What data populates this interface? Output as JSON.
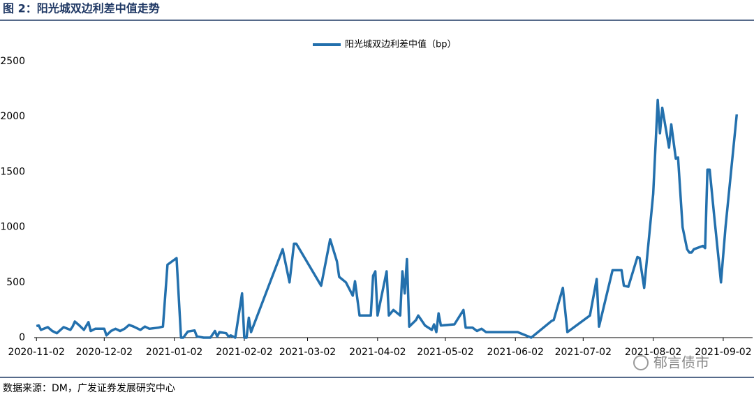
{
  "chart_data": {
    "type": "line",
    "title": "图 2：阳光城双边利差中值走势",
    "source": "数据来源：DM，广发证券发展研究中心",
    "watermark": "郁言债市",
    "series": [
      {
        "name": "阳光城双边利差中值（bp）",
        "color": "#2370ad",
        "x": [
          "2020-11-02",
          "2020-11-03",
          "2020-11-04",
          "2020-11-07",
          "2020-11-09",
          "2020-11-11",
          "2020-11-14",
          "2020-11-17",
          "2020-11-18",
          "2020-11-19",
          "2020-11-21",
          "2020-11-23",
          "2020-11-25",
          "2020-11-26",
          "2020-11-28",
          "2020-12-02",
          "2020-12-03",
          "2020-12-05",
          "2020-12-07",
          "2020-12-09",
          "2020-12-11",
          "2020-12-13",
          "2020-12-15",
          "2020-12-18",
          "2020-12-20",
          "2020-12-22",
          "2020-12-26",
          "2020-12-28",
          "2020-12-30",
          "2021-01-03",
          "2021-01-05",
          "2021-01-06",
          "2021-01-08",
          "2021-01-11",
          "2021-01-12",
          "2021-01-15",
          "2021-01-18",
          "2021-01-20",
          "2021-01-21",
          "2021-01-22",
          "2021-01-25",
          "2021-01-26",
          "2021-01-27",
          "2021-01-29",
          "2021-02-01",
          "2021-02-02",
          "2021-02-03",
          "2021-02-04",
          "2021-02-05",
          "2021-02-19",
          "2021-02-22",
          "2021-02-24",
          "2021-02-25",
          "2021-03-08",
          "2021-03-12",
          "2021-03-15",
          "2021-03-16",
          "2021-03-19",
          "2021-03-22",
          "2021-03-23",
          "2021-03-25",
          "2021-03-26",
          "2021-03-30",
          "2021-03-31",
          "2021-04-01",
          "2021-04-02",
          "2021-04-06",
          "2021-04-07",
          "2021-04-09",
          "2021-04-12",
          "2021-04-13",
          "2021-04-14",
          "2021-04-15",
          "2021-04-16",
          "2021-04-19",
          "2021-04-20",
          "2021-04-23",
          "2021-04-26",
          "2021-04-27",
          "2021-04-28",
          "2021-04-29",
          "2021-04-30",
          "2021-05-06",
          "2021-05-10",
          "2021-05-11",
          "2021-05-14",
          "2021-05-16",
          "2021-05-18",
          "2021-05-20",
          "2021-06-03",
          "2021-06-09",
          "2021-06-18",
          "2021-06-19",
          "2021-06-23",
          "2021-06-25",
          "2021-07-05",
          "2021-07-08",
          "2021-07-09",
          "2021-07-15",
          "2021-07-19",
          "2021-07-20",
          "2021-07-22",
          "2021-07-26",
          "2021-07-27",
          "2021-07-29",
          "2021-08-02",
          "2021-08-04",
          "2021-08-05",
          "2021-08-06",
          "2021-08-09",
          "2021-08-10",
          "2021-08-12",
          "2021-08-13",
          "2021-08-15",
          "2021-08-17",
          "2021-08-18",
          "2021-08-19",
          "2021-08-20",
          "2021-08-24",
          "2021-08-25",
          "2021-08-26",
          "2021-08-27",
          "2021-08-29",
          "2021-09-01",
          "2021-09-03",
          "2021-09-08"
        ],
        "values": [
          105,
          110,
          70,
          95,
          60,
          40,
          95,
          70,
          100,
          145,
          110,
          70,
          140,
          60,
          80,
          80,
          20,
          60,
          80,
          60,
          80,
          115,
          100,
          70,
          100,
          80,
          90,
          100,
          660,
          720,
          0,
          0,
          55,
          65,
          10,
          0,
          0,
          60,
          10,
          50,
          40,
          10,
          20,
          0,
          400,
          0,
          0,
          180,
          50,
          800,
          500,
          850,
          850,
          470,
          890,
          690,
          550,
          500,
          380,
          510,
          200,
          200,
          200,
          560,
          600,
          200,
          600,
          200,
          250,
          200,
          600,
          400,
          710,
          100,
          160,
          200,
          110,
          70,
          120,
          50,
          220,
          110,
          120,
          250,
          90,
          90,
          60,
          80,
          50,
          50,
          0,
          150,
          160,
          450,
          50,
          200,
          530,
          100,
          610,
          610,
          470,
          460,
          730,
          720,
          450,
          1300,
          2150,
          1850,
          2080,
          1720,
          1930,
          1620,
          1630,
          1000,
          800,
          770,
          770,
          800,
          830,
          810,
          1520,
          1520,
          1100,
          500,
          1000,
          2020
        ]
      }
    ],
    "xlim": [
      "2020-11-01",
      "2021-09-15"
    ],
    "xticks": [
      "2020-11-02",
      "2020-12-02",
      "2021-01-02",
      "2021-02-02",
      "2021-03-02",
      "2021-04-02",
      "2021-05-02",
      "2021-06-02",
      "2021-07-02",
      "2021-08-02",
      "2021-09-02"
    ],
    "ylim": [
      0,
      2500
    ],
    "yticks": [
      0,
      500,
      1000,
      1500,
      2000,
      2500
    ],
    "grid": false,
    "legend": "top"
  }
}
